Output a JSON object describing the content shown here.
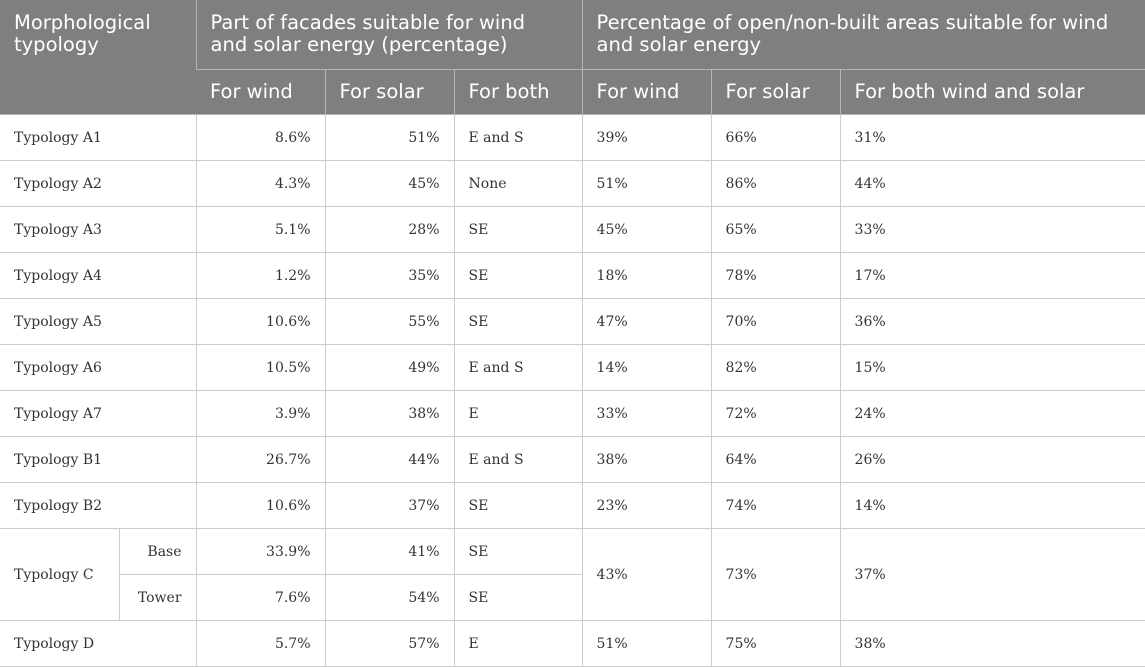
{
  "headers": {
    "typology": "Morphological typology",
    "facades_group": "Part of facades suitable for wind and solar energy (percentage)",
    "open_group": "Percentage of open/non-built areas suitable for wind and solar energy",
    "facades_wind": "For wind",
    "facades_solar": "For solar",
    "facades_both": "For both",
    "open_wind": "For wind",
    "open_solar": "For solar",
    "open_both": "For both wind and solar"
  },
  "rows": [
    {
      "name": "Typology A1",
      "f_wind": "8.6%",
      "f_solar": "51%",
      "f_both": "E and S",
      "o_wind": "39%",
      "o_solar": "66%",
      "o_both": "31%"
    },
    {
      "name": "Typology A2",
      "f_wind": "4.3%",
      "f_solar": "45%",
      "f_both": "None",
      "o_wind": "51%",
      "o_solar": "86%",
      "o_both": "44%"
    },
    {
      "name": "Typology A3",
      "f_wind": "5.1%",
      "f_solar": "28%",
      "f_both": "SE",
      "o_wind": "45%",
      "o_solar": "65%",
      "o_both": "33%"
    },
    {
      "name": "Typology A4",
      "f_wind": "1.2%",
      "f_solar": "35%",
      "f_both": "SE",
      "o_wind": "18%",
      "o_solar": "78%",
      "o_both": "17%"
    },
    {
      "name": "Typology A5",
      "f_wind": "10.6%",
      "f_solar": "55%",
      "f_both": "SE",
      "o_wind": "47%",
      "o_solar": "70%",
      "o_both": "36%"
    },
    {
      "name": "Typology A6",
      "f_wind": "10.5%",
      "f_solar": "49%",
      "f_both": "E and S",
      "o_wind": "14%",
      "o_solar": "82%",
      "o_both": "15%"
    },
    {
      "name": "Typology A7",
      "f_wind": "3.9%",
      "f_solar": "38%",
      "f_both": "E",
      "o_wind": "33%",
      "o_solar": "72%",
      "o_both": "24%"
    },
    {
      "name": "Typology B1",
      "f_wind": "26.7%",
      "f_solar": "44%",
      "f_both": "E and S",
      "o_wind": "38%",
      "o_solar": "64%",
      "o_both": "26%"
    },
    {
      "name": "Typology B2",
      "f_wind": "10.6%",
      "f_solar": "37%",
      "f_both": "SE",
      "o_wind": "23%",
      "o_solar": "74%",
      "o_both": "14%"
    }
  ],
  "typology_c": {
    "name": "Typology C",
    "o_wind": "43%",
    "o_solar": "73%",
    "o_both": "37%",
    "sub": [
      {
        "name": "Base",
        "f_wind": "33.9%",
        "f_solar": "41%",
        "f_both": "SE"
      },
      {
        "name": "Tower",
        "f_wind": "7.6%",
        "f_solar": "54%",
        "f_both": "SE"
      }
    ]
  },
  "typology_d": {
    "name": "Typology D",
    "f_wind": "5.7%",
    "f_solar": "57%",
    "f_both": "E",
    "o_wind": "51%",
    "o_solar": "75%",
    "o_both": "38%"
  }
}
